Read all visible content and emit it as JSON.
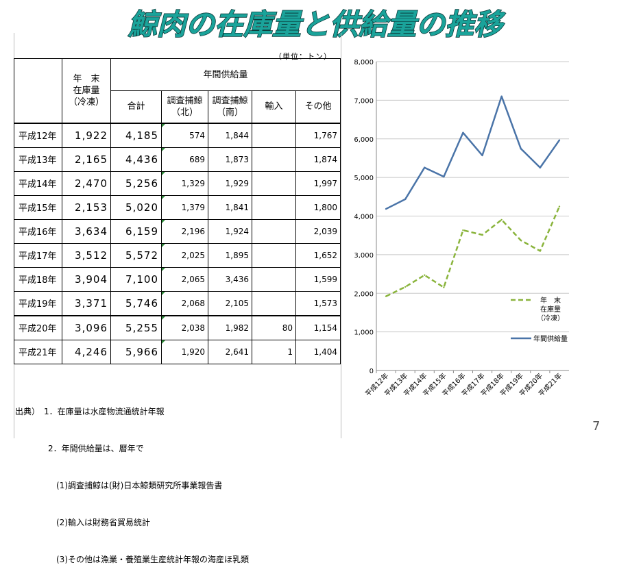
{
  "title": "鯨肉の在庫量と供給量の推移",
  "unit": "（単位：トン）",
  "page_number": "7",
  "table": {
    "header": {
      "year_end_stock": [
        "年　末",
        "在庫量",
        "（冷凍）"
      ],
      "annual_supply": "年間供給量",
      "total": "合計",
      "research_north": [
        "調査捕鯨",
        "（北）"
      ],
      "research_south": [
        "調査捕鯨",
        "（南）"
      ],
      "imports": "輸入",
      "other": "その他"
    },
    "rows": [
      {
        "year": "平成12年",
        "stock": "1,922",
        "total": "4,185",
        "north": "574",
        "south": "1,844",
        "imports": "",
        "other": "1,767"
      },
      {
        "year": "平成13年",
        "stock": "2,165",
        "total": "4,436",
        "north": "689",
        "south": "1,873",
        "imports": "",
        "other": "1,874"
      },
      {
        "year": "平成14年",
        "stock": "2,470",
        "total": "5,256",
        "north": "1,329",
        "south": "1,929",
        "imports": "",
        "other": "1,997"
      },
      {
        "year": "平成15年",
        "stock": "2,153",
        "total": "5,020",
        "north": "1,379",
        "south": "1,841",
        "imports": "",
        "other": "1,800"
      },
      {
        "year": "平成16年",
        "stock": "3,634",
        "total": "6,159",
        "north": "2,196",
        "south": "1,924",
        "imports": "",
        "other": "2,039"
      },
      {
        "year": "平成17年",
        "stock": "3,512",
        "total": "5,572",
        "north": "2,025",
        "south": "1,895",
        "imports": "",
        "other": "1,652"
      },
      {
        "year": "平成18年",
        "stock": "3,904",
        "total": "7,100",
        "north": "2,065",
        "south": "3,436",
        "imports": "",
        "other": "1,599"
      },
      {
        "year": "平成19年",
        "stock": "3,371",
        "total": "5,746",
        "north": "2,068",
        "south": "2,105",
        "imports": "",
        "other": "1,573"
      },
      {
        "year": "平成20年",
        "stock": "3,096",
        "total": "5,255",
        "north": "2,038",
        "south": "1,982",
        "imports": "80",
        "other": "1,154"
      },
      {
        "year": "平成21年",
        "stock": "4,246",
        "total": "5,966",
        "north": "1,920",
        "south": "2,641",
        "imports": "1",
        "other": "1,404"
      }
    ]
  },
  "source_notes": [
    "出典）　1．在庫量は水産物流通統計年報",
    "　　　　2．年間供給量は、暦年で",
    "　　　　　(1)調査捕鯨は(財)日本鯨類研究所事業報告書",
    "　　　　　(2)輸入は財務省貿易統計",
    "　　　　　(3)その他は漁業・養殖業生産統計年報の海産ほ乳類"
  ],
  "chart_data": {
    "type": "line",
    "categories": [
      "平成12年",
      "平成13年",
      "平成14年",
      "平成15年",
      "平成16年",
      "平成17年",
      "平成18年",
      "平成19年",
      "平成20年",
      "平成21年"
    ],
    "series": [
      {
        "name": "年　末\n在庫量\n（冷凍）",
        "name_lines": [
          "年　末",
          "在庫量",
          "（冷凍）"
        ],
        "values": [
          1922,
          2165,
          2470,
          2153,
          3634,
          3512,
          3904,
          3371,
          3096,
          4246
        ],
        "color": "#8ab43c",
        "style": "dashed"
      },
      {
        "name": "年間供給量",
        "name_lines": [
          "年間供給量"
        ],
        "values": [
          4185,
          4436,
          5256,
          5020,
          6159,
          5572,
          7100,
          5746,
          5255,
          5966
        ],
        "color": "#4a74a8",
        "style": "solid"
      }
    ],
    "ylim": [
      0,
      8000
    ],
    "yticks": [
      "0",
      "1,000",
      "2,000",
      "3,000",
      "4,000",
      "5,000",
      "6,000",
      "7,000",
      "8,000"
    ],
    "grid": true,
    "legend_position": "bottom-right"
  }
}
